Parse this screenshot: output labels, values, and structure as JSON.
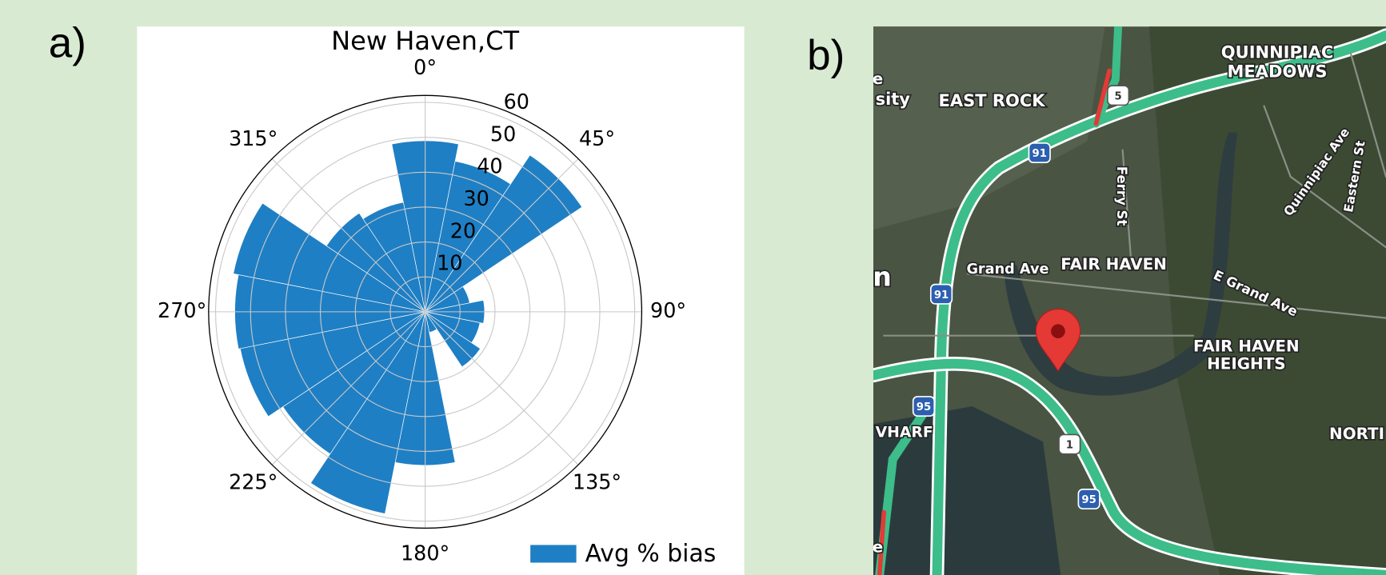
{
  "panel_labels": [
    "a)",
    "b)"
  ],
  "chart_data": {
    "type": "polar_bar",
    "title": "New Haven,CT",
    "theta": [
      0,
      22.5,
      45,
      67.5,
      90,
      112.5,
      135,
      157.5,
      180,
      202.5,
      225,
      247.5,
      270,
      292.5,
      315,
      337.5
    ],
    "series": [
      {
        "name": "Avg % bias",
        "color": "#1f7fc4",
        "values": [
          49,
          44,
          54,
          13,
          17,
          16,
          19,
          6,
          44,
          59,
          49,
          54,
          54.5,
          56,
          34,
          32
        ]
      }
    ],
    "ylim": [
      0,
      62
    ],
    "yticks": [
      10,
      20,
      30,
      40,
      50,
      60
    ],
    "thetaticks": [
      {
        "value": 0,
        "label": "0°"
      },
      {
        "value": 45,
        "label": "45°"
      },
      {
        "value": 90,
        "label": "90°"
      },
      {
        "value": 135,
        "label": "135°"
      },
      {
        "value": 180,
        "label": "180°"
      },
      {
        "value": 225,
        "label": "225°"
      },
      {
        "value": 270,
        "label": "270°"
      },
      {
        "value": 315,
        "label": "315°"
      }
    ],
    "grid": true,
    "legend": "lower right"
  },
  "map": {
    "labels": [
      "sity",
      "EAST ROCK",
      "QUINNIPIAC",
      "MEADOWS",
      "Ferry St",
      "Quinnipiac Ave",
      "Eastern St",
      "Grand Ave",
      "FAIR HAVEN",
      "E Grand Ave",
      "FAIR HAVEN",
      "HEIGHTS",
      "VHARF",
      "NORTI",
      "n",
      "e",
      "e"
    ],
    "shields": [
      "5",
      "91",
      "91",
      "95",
      "1",
      "95"
    ]
  }
}
